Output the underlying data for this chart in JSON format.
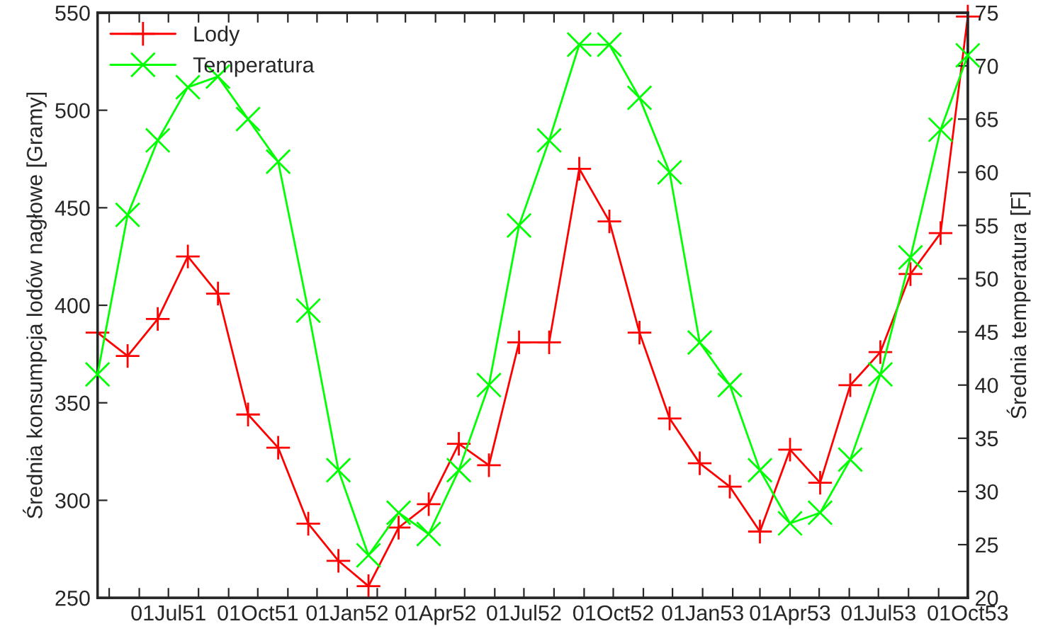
{
  "chart_data": {
    "type": "line",
    "ylabel": "Średnia konsumpcja lodów nagłowe [Gramy]",
    "y2label": "Średnia temperatura [F]",
    "x": [
      "1951-04-19",
      "1951-05-20",
      "1951-06-20",
      "1951-07-21",
      "1951-08-21",
      "1951-09-21",
      "1951-10-22",
      "1951-11-22",
      "1951-12-23",
      "1952-01-23",
      "1952-02-23",
      "1952-03-25",
      "1952-04-25",
      "1952-05-26",
      "1952-06-26",
      "1952-07-27",
      "1952-08-27",
      "1952-09-27",
      "1952-10-28",
      "1952-11-28",
      "1952-12-29",
      "1953-01-29",
      "1953-03-01",
      "1953-04-01",
      "1953-05-02",
      "1953-06-02",
      "1953-07-03",
      "1953-08-03",
      "1953-09-03",
      "1953-10-01"
    ],
    "series": [
      {
        "name": "Lody",
        "color": "#ff0000",
        "marker": "plus",
        "values": [
          386,
          374,
          393,
          425,
          406,
          344,
          327,
          288,
          269,
          256,
          286,
          298,
          329,
          318,
          381,
          381,
          470,
          443,
          386,
          342,
          319,
          307,
          284,
          326,
          309,
          359,
          376,
          416,
          437,
          548
        ]
      },
      {
        "name": "Temperatura",
        "color": "#00ff00",
        "marker": "cross",
        "axis": "y2",
        "values": [
          41,
          56,
          63,
          68,
          69,
          65,
          61,
          47,
          32,
          24,
          28,
          26,
          32,
          40,
          55,
          63,
          72,
          72,
          67,
          60,
          44,
          40,
          32,
          27,
          28,
          33,
          41,
          52,
          64,
          71
        ]
      }
    ],
    "xlim": [
      "1951-04-19",
      "1953-10-01"
    ],
    "xticks": [
      {
        "value": "1951-05-01",
        "label": null
      },
      {
        "value": "1951-06-01",
        "label": null
      },
      {
        "value": "1951-07-01",
        "label": "01Jul51"
      },
      {
        "value": "1951-08-01",
        "label": null
      },
      {
        "value": "1951-09-01",
        "label": null
      },
      {
        "value": "1951-10-01",
        "label": "01Oct51"
      },
      {
        "value": "1951-11-01",
        "label": null
      },
      {
        "value": "1951-12-01",
        "label": null
      },
      {
        "value": "1952-01-01",
        "label": "01Jan52"
      },
      {
        "value": "1952-02-01",
        "label": null
      },
      {
        "value": "1952-03-01",
        "label": null
      },
      {
        "value": "1952-04-01",
        "label": "01Apr52"
      },
      {
        "value": "1952-05-01",
        "label": null
      },
      {
        "value": "1952-06-01",
        "label": null
      },
      {
        "value": "1952-07-01",
        "label": "01Jul52"
      },
      {
        "value": "1952-08-01",
        "label": null
      },
      {
        "value": "1952-09-01",
        "label": null
      },
      {
        "value": "1952-10-01",
        "label": "01Oct52"
      },
      {
        "value": "1952-11-01",
        "label": null
      },
      {
        "value": "1952-12-01",
        "label": null
      },
      {
        "value": "1953-01-01",
        "label": "01Jan53"
      },
      {
        "value": "1953-02-01",
        "label": null
      },
      {
        "value": "1953-03-01",
        "label": null
      },
      {
        "value": "1953-04-01",
        "label": "01Apr53"
      },
      {
        "value": "1953-05-01",
        "label": null
      },
      {
        "value": "1953-06-01",
        "label": null
      },
      {
        "value": "1953-07-01",
        "label": "01Jul53"
      },
      {
        "value": "1953-08-01",
        "label": null
      },
      {
        "value": "1953-09-01",
        "label": null
      },
      {
        "value": "1953-10-01",
        "label": "01Oct53"
      }
    ],
    "ylim": [
      250,
      550
    ],
    "yticks": [
      250,
      300,
      350,
      400,
      450,
      500,
      550
    ],
    "y2lim": [
      20,
      75
    ],
    "y2ticks": [
      20,
      25,
      30,
      35,
      40,
      45,
      50,
      55,
      60,
      65,
      70,
      75
    ],
    "grid": false,
    "legend": "top left",
    "line_style": "solid"
  }
}
